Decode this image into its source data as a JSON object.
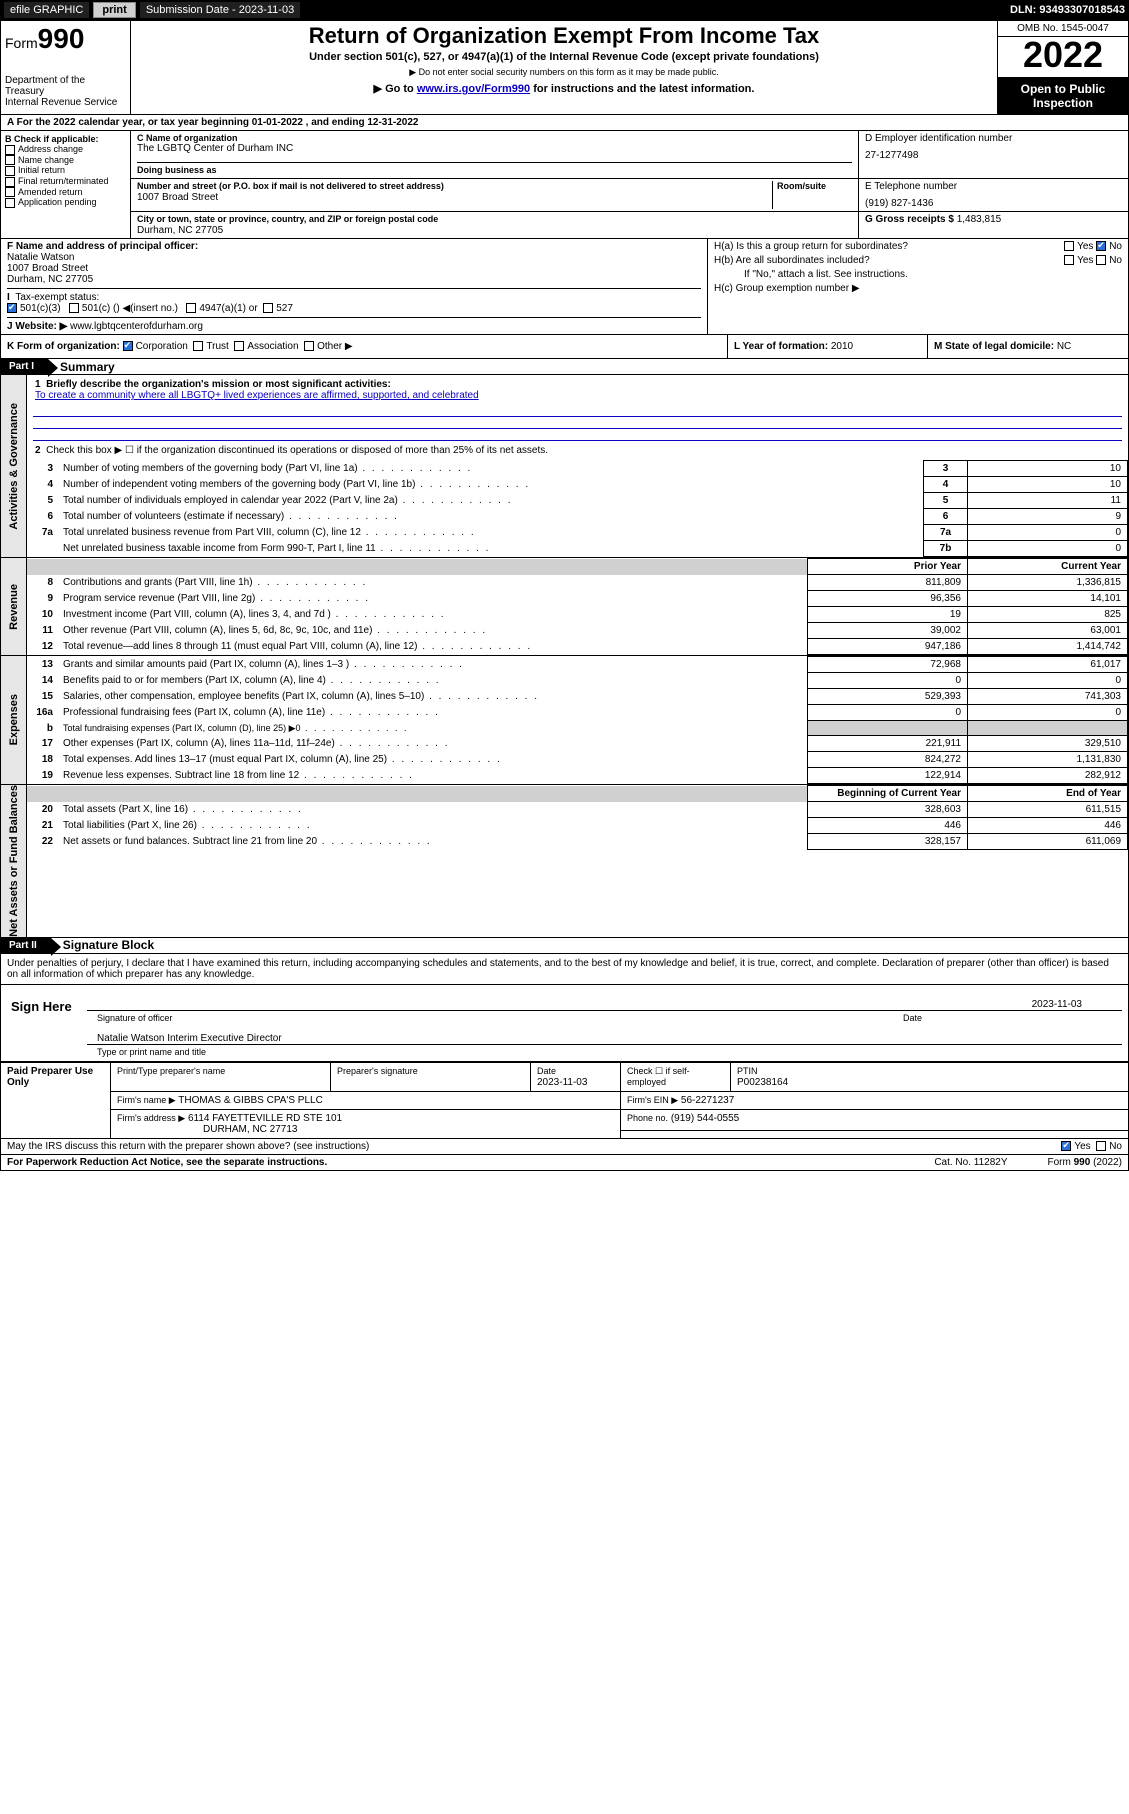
{
  "topbar": {
    "efile": "efile GRAPHIC",
    "print": "print",
    "submission_label": "Submission Date - 2023-11-03",
    "dln": "DLN: 93493307018543"
  },
  "header": {
    "form_word": "Form",
    "form_num": "990",
    "dept": "Department of the Treasury",
    "irs": "Internal Revenue Service",
    "title": "Return of Organization Exempt From Income Tax",
    "subtitle": "Under section 501(c), 527, or 4947(a)(1) of the Internal Revenue Code (except private foundations)",
    "warn": "Do not enter social security numbers on this form as it may be made public.",
    "goto_pre": "Go to ",
    "goto_url": "www.irs.gov/Form990",
    "goto_post": " for instructions and the latest information.",
    "omb": "OMB No. 1545-0047",
    "year": "2022",
    "open1": "Open to Public",
    "open2": "Inspection"
  },
  "lineA": "For the 2022 calendar year, or tax year beginning 01-01-2022   , and ending 12-31-2022",
  "colB": {
    "label": "B Check if applicable:",
    "items": [
      "Address change",
      "Name change",
      "Initial return",
      "Final return/terminated",
      "Amended return",
      "Application pending"
    ]
  },
  "colC": {
    "name_lbl": "C Name of organization",
    "name": "The LGBTQ Center of Durham INC",
    "dba_lbl": "Doing business as",
    "addr_lbl": "Number and street (or P.O. box if mail is not delivered to street address)",
    "room_lbl": "Room/suite",
    "addr": "1007 Broad Street",
    "city_lbl": "City or town, state or province, country, and ZIP or foreign postal code",
    "city": "Durham, NC  27705"
  },
  "colD": {
    "ein_lbl": "D Employer identification number",
    "ein": "27-1277498",
    "phone_lbl": "E Telephone number",
    "phone": "(919) 827-1436",
    "gross_lbl": "G Gross receipts $",
    "gross": "1,483,815"
  },
  "rowF": {
    "lbl": "F  Name and address of principal officer:",
    "name": "Natalie Watson",
    "addr1": "1007 Broad Street",
    "addr2": "Durham, NC  27705"
  },
  "rowI": {
    "lbl": "Tax-exempt status:",
    "o1": "501(c)(3)",
    "o2a": "501(c) (",
    "o2b": ") ◀(insert no.)",
    "o3": "4947(a)(1) or",
    "o4": "527"
  },
  "rowJ": {
    "lbl": "J   Website: ▶",
    "url": "www.lgbtqcenterofdurham.org"
  },
  "colH": {
    "ha": "H(a)  Is this a group return for subordinates?",
    "yes": "Yes",
    "no": "No",
    "hb": "H(b)  Are all subordinates included?",
    "hb2": "If \"No,\" attach a list. See instructions.",
    "hc": "H(c)  Group exemption number ▶"
  },
  "rowK": {
    "lbl": "K Form of organization:",
    "o1": "Corporation",
    "o2": "Trust",
    "o3": "Association",
    "o4": "Other ▶"
  },
  "rowL": {
    "lbl": "L Year of formation:",
    "val": "2010"
  },
  "rowM": {
    "lbl": "M State of legal domicile:",
    "val": "NC"
  },
  "partI": {
    "hdr": "Part I",
    "title": "Summary",
    "vtab": "Activities & Governance"
  },
  "p1": {
    "l1": "Briefly describe the organization's mission or most significant activities:",
    "mission": "To create a community where all LBGTQ+ lived experiences are affirmed, supported, and celebrated",
    "l2": "Check this box ▶ ☐  if the organization discontinued its operations or disposed of more than 25% of its net assets.",
    "rows": [
      {
        "n": "3",
        "t": "Number of voting members of the governing body (Part VI, line 1a)",
        "b": "3",
        "v": "10"
      },
      {
        "n": "4",
        "t": "Number of independent voting members of the governing body (Part VI, line 1b)",
        "b": "4",
        "v": "10"
      },
      {
        "n": "5",
        "t": "Total number of individuals employed in calendar year 2022 (Part V, line 2a)",
        "b": "5",
        "v": "11"
      },
      {
        "n": "6",
        "t": "Total number of volunteers (estimate if necessary)",
        "b": "6",
        "v": "9"
      },
      {
        "n": "7a",
        "t": "Total unrelated business revenue from Part VIII, column (C), line 12",
        "b": "7a",
        "v": "0"
      },
      {
        "n": "",
        "t": "Net unrelated business taxable income from Form 990-T, Part I, line 11",
        "b": "7b",
        "v": "0"
      }
    ]
  },
  "rev": {
    "vtab": "Revenue",
    "hdr_prior": "Prior Year",
    "hdr_curr": "Current Year",
    "rows": [
      {
        "n": "8",
        "t": "Contributions and grants (Part VIII, line 1h)",
        "p": "811,809",
        "c": "1,336,815"
      },
      {
        "n": "9",
        "t": "Program service revenue (Part VIII, line 2g)",
        "p": "96,356",
        "c": "14,101"
      },
      {
        "n": "10",
        "t": "Investment income (Part VIII, column (A), lines 3, 4, and 7d )",
        "p": "19",
        "c": "825"
      },
      {
        "n": "11",
        "t": "Other revenue (Part VIII, column (A), lines 5, 6d, 8c, 9c, 10c, and 11e)",
        "p": "39,002",
        "c": "63,001"
      },
      {
        "n": "12",
        "t": "Total revenue—add lines 8 through 11 (must equal Part VIII, column (A), line 12)",
        "p": "947,186",
        "c": "1,414,742"
      }
    ]
  },
  "exp": {
    "vtab": "Expenses",
    "rows": [
      {
        "n": "13",
        "t": "Grants and similar amounts paid (Part IX, column (A), lines 1–3 )",
        "p": "72,968",
        "c": "61,017"
      },
      {
        "n": "14",
        "t": "Benefits paid to or for members (Part IX, column (A), line 4)",
        "p": "0",
        "c": "0"
      },
      {
        "n": "15",
        "t": "Salaries, other compensation, employee benefits (Part IX, column (A), lines 5–10)",
        "p": "529,393",
        "c": "741,303"
      },
      {
        "n": "16a",
        "t": "Professional fundraising fees (Part IX, column (A), line 11e)",
        "p": "0",
        "c": "0"
      },
      {
        "n": "b",
        "t": "Total fundraising expenses (Part IX, column (D), line 25) ▶0",
        "p": "",
        "c": "",
        "grey": true,
        "small": true
      },
      {
        "n": "17",
        "t": "Other expenses (Part IX, column (A), lines 11a–11d, 11f–24e)",
        "p": "221,911",
        "c": "329,510"
      },
      {
        "n": "18",
        "t": "Total expenses. Add lines 13–17 (must equal Part IX, column (A), line 25)",
        "p": "824,272",
        "c": "1,131,830"
      },
      {
        "n": "19",
        "t": "Revenue less expenses. Subtract line 18 from line 12",
        "p": "122,914",
        "c": "282,912"
      }
    ]
  },
  "net": {
    "vtab": "Net Assets or Fund Balances",
    "hdr_beg": "Beginning of Current Year",
    "hdr_end": "End of Year",
    "rows": [
      {
        "n": "20",
        "t": "Total assets (Part X, line 16)",
        "p": "328,603",
        "c": "611,515"
      },
      {
        "n": "21",
        "t": "Total liabilities (Part X, line 26)",
        "p": "446",
        "c": "446"
      },
      {
        "n": "22",
        "t": "Net assets or fund balances. Subtract line 21 from line 20",
        "p": "328,157",
        "c": "611,069"
      }
    ]
  },
  "partII": {
    "hdr": "Part II",
    "title": "Signature Block"
  },
  "sig": {
    "perjury": "Under penalties of perjury, I declare that I have examined this return, including accompanying schedules and statements, and to the best of my knowledge and belief, it is true, correct, and complete. Declaration of preparer (other than officer) is based on all information of which preparer has any knowledge.",
    "sign_here": "Sign Here",
    "sig_off": "Signature of officer",
    "date_lbl": "Date",
    "date": "2023-11-03",
    "name": "Natalie Watson  Interim Executive Director",
    "type_lbl": "Type or print name and title"
  },
  "paid": {
    "left": "Paid Preparer Use Only",
    "h1": "Print/Type preparer's name",
    "h2": "Preparer's signature",
    "h3": "Date",
    "h3v": "2023-11-03",
    "h4": "Check ☐ if self-employed",
    "h5": "PTIN",
    "h5v": "P00238164",
    "firm_lbl": "Firm's name    ▶",
    "firm": "THOMAS & GIBBS CPA'S PLLC",
    "ein_lbl": "Firm's EIN ▶",
    "ein": "56-2271237",
    "addr_lbl": "Firm's address ▶",
    "addr1": "6114 FAYETTEVILLE RD STE 101",
    "addr2": "DURHAM, NC  27713",
    "phone_lbl": "Phone no.",
    "phone": "(919) 544-0555"
  },
  "footer": {
    "discuss": "May the IRS discuss this return with the preparer shown above? (see instructions)",
    "yes": "Yes",
    "no": "No",
    "pra": "For Paperwork Reduction Act Notice, see the separate instructions.",
    "cat": "Cat. No. 11282Y",
    "form": "Form 990 (2022)"
  }
}
